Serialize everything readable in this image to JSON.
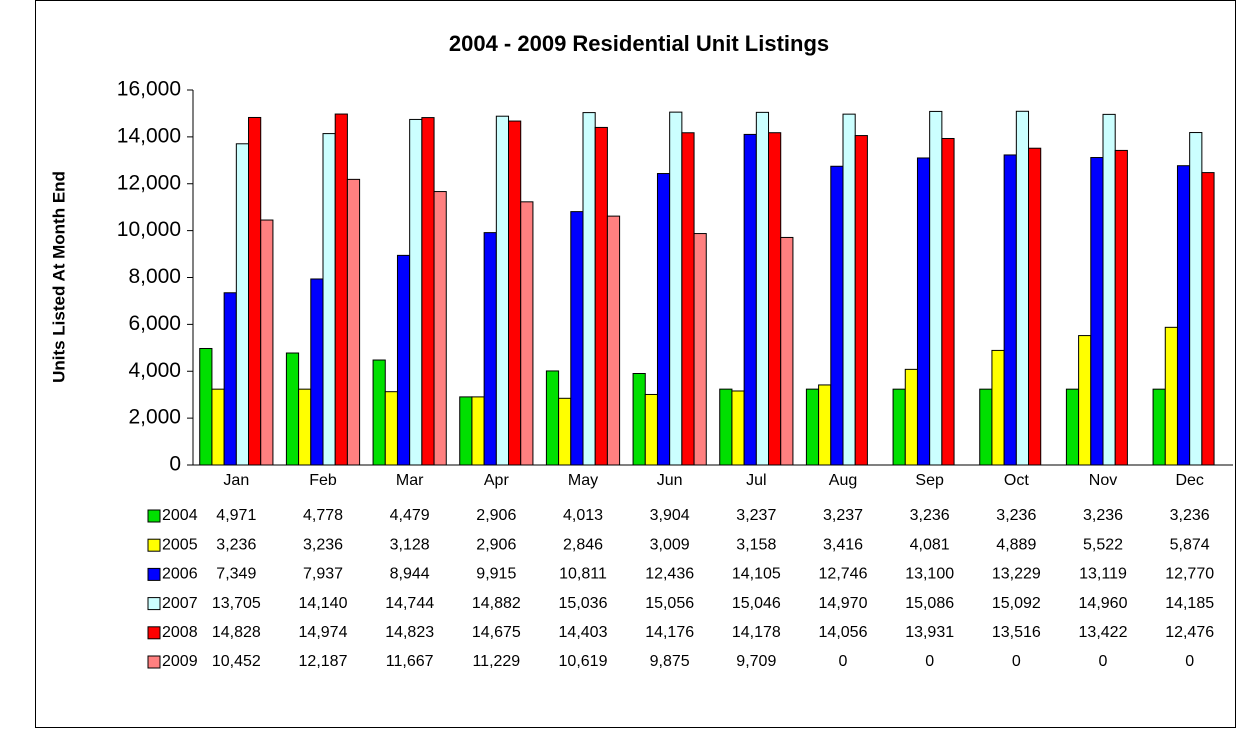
{
  "chart_data": {
    "type": "bar",
    "title": "2004 - 2009 Residential Unit Listings",
    "y_label": "Units Listed At Month End",
    "categories": [
      "Jan",
      "Feb",
      "Mar",
      "Apr",
      "May",
      "Jun",
      "Jul",
      "Aug",
      "Sep",
      "Oct",
      "Nov",
      "Dec"
    ],
    "ylim": [
      0,
      16000
    ],
    "yticks": [
      0,
      {
        "value": 2000,
        "label": "2,000"
      },
      {
        "value": 4000,
        "label": "4,000"
      },
      {
        "value": 6000,
        "label": "6,000"
      },
      {
        "value": 8000,
        "label": "8,000"
      },
      {
        "value": 10000,
        "label": "10,000"
      },
      {
        "value": 12000,
        "label": "12,000"
      },
      {
        "value": 14000,
        "label": "14,000"
      },
      {
        "value": 16000,
        "label": "16,000"
      }
    ],
    "series": [
      {
        "name": "2004",
        "color": "#00e000",
        "values": [
          4971,
          4778,
          4479,
          2906,
          4013,
          3904,
          3237,
          3237,
          3236,
          3236,
          3236,
          3236
        ],
        "value_labels": [
          "4,971",
          "4,778",
          "4,479",
          "2,906",
          "4,013",
          "3,904",
          "3,237",
          "3,237",
          "3,236",
          "3,236",
          "3,236",
          "3,236"
        ]
      },
      {
        "name": "2005",
        "color": "#ffff00",
        "values": [
          3236,
          3236,
          3128,
          2906,
          2846,
          3009,
          3158,
          3416,
          4081,
          4889,
          5522,
          5874
        ],
        "value_labels": [
          "3,236",
          "3,236",
          "3,128",
          "2,906",
          "2,846",
          "3,009",
          "3,158",
          "3,416",
          "4,081",
          "4,889",
          "5,522",
          "5,874"
        ]
      },
      {
        "name": "2006",
        "color": "#0000ff",
        "values": [
          7349,
          7937,
          8944,
          9915,
          10811,
          12436,
          14105,
          12746,
          13100,
          13229,
          13119,
          12770
        ],
        "value_labels": [
          "7,349",
          "7,937",
          "8,944",
          "9,915",
          "10,811",
          "12,436",
          "14,105",
          "12,746",
          "13,100",
          "13,229",
          "13,119",
          "12,770"
        ]
      },
      {
        "name": "2007",
        "color": "#ccffff",
        "values": [
          13705,
          14140,
          14744,
          14882,
          15036,
          15056,
          15046,
          14970,
          15086,
          15092,
          14960,
          14185
        ],
        "value_labels": [
          "13,705",
          "14,140",
          "14,744",
          "14,882",
          "15,036",
          "15,056",
          "15,046",
          "14,970",
          "15,086",
          "15,092",
          "14,960",
          "14,185"
        ]
      },
      {
        "name": "2008",
        "color": "#ff0000",
        "values": [
          14828,
          14974,
          14823,
          14675,
          14403,
          14176,
          14178,
          14056,
          13931,
          13516,
          13422,
          12476
        ],
        "value_labels": [
          "14,828",
          "14,974",
          "14,823",
          "14,675",
          "14,403",
          "14,176",
          "14,178",
          "14,056",
          "13,931",
          "13,516",
          "13,422",
          "12,476"
        ]
      },
      {
        "name": "2009",
        "color": "#ff8080",
        "values": [
          10452,
          12187,
          11667,
          11229,
          10619,
          9875,
          9709,
          0,
          0,
          0,
          0,
          0
        ],
        "value_labels": [
          "10,452",
          "12,187",
          "11,667",
          "11,229",
          "10,619",
          "9,875",
          "9,709",
          "0",
          "0",
          "0",
          "0",
          "0"
        ]
      }
    ]
  }
}
